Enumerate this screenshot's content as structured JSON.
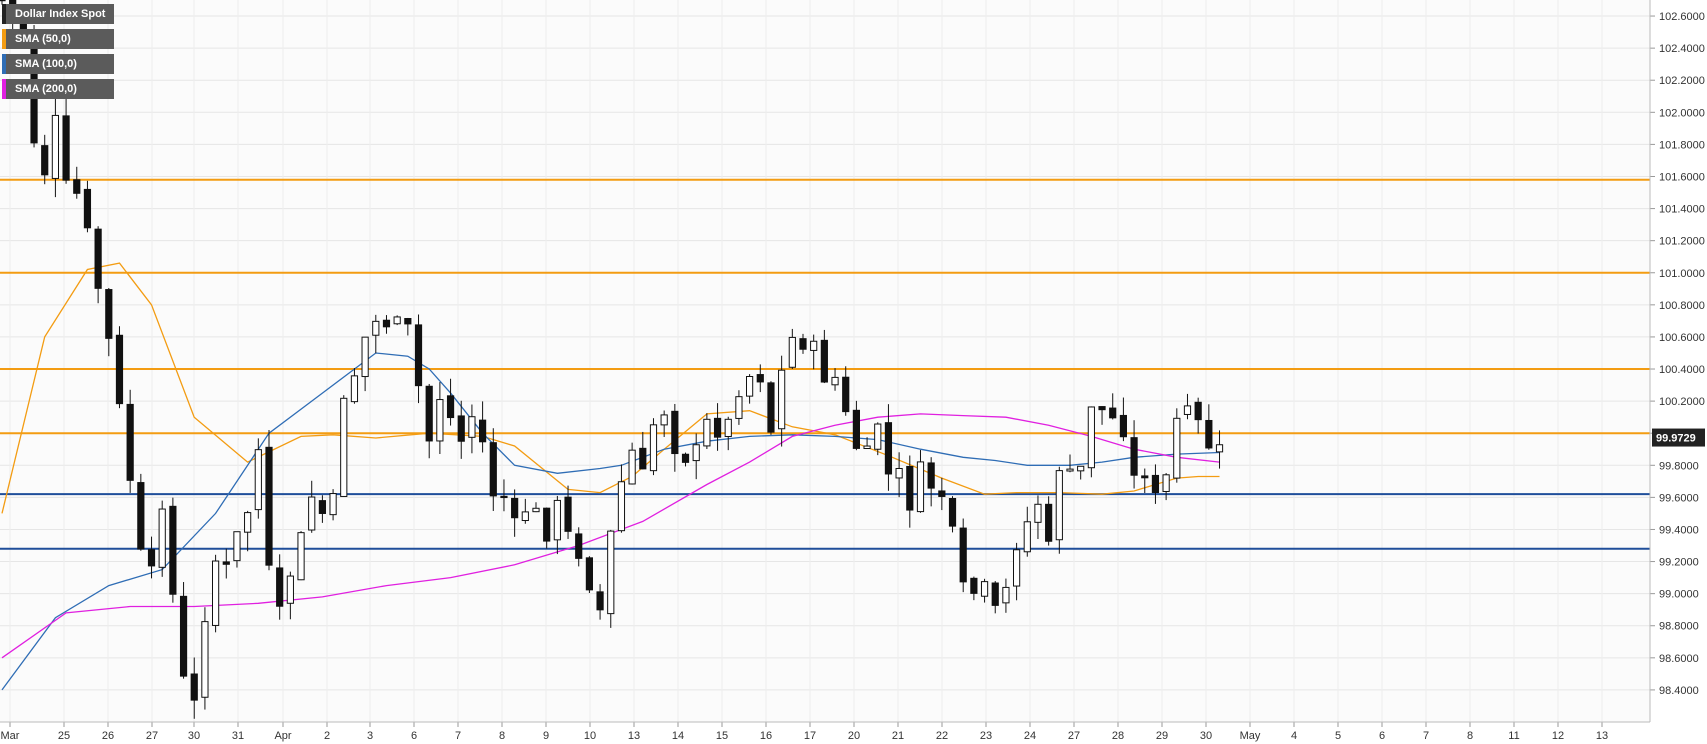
{
  "chart_data": {
    "type": "candlestick",
    "title": "",
    "instrument": "Dollar Index Spot",
    "timeframe": "4-hour",
    "ylim": [
      98.2,
      102.7
    ],
    "y_ticks": [
      "102.6000",
      "102.4000",
      "102.2000",
      "102.0000",
      "101.8000",
      "101.6000",
      "101.4000",
      "101.2000",
      "101.0000",
      "100.8000",
      "100.6000",
      "100.4000",
      "100.2000",
      "100.0000",
      "99.8000",
      "99.6000",
      "99.4000",
      "99.2000",
      "99.0000",
      "98.8000",
      "98.6000",
      "98.4000"
    ],
    "x_ticks": [
      "Mar",
      "25",
      "26",
      "27",
      "30",
      "31",
      "Apr",
      "2",
      "3",
      "6",
      "7",
      "8",
      "9",
      "10",
      "13",
      "14",
      "15",
      "16",
      "17",
      "20",
      "21",
      "22",
      "23",
      "24",
      "27",
      "28",
      "29",
      "30",
      "May",
      "4",
      "5",
      "6",
      "7",
      "8",
      "11",
      "12",
      "13"
    ],
    "last_price": "99.9729",
    "grid": true,
    "legend": [
      {
        "label": "Dollar Index Spot",
        "color": "#222222"
      },
      {
        "label": "SMA (50,0)",
        "color": "#f39c12"
      },
      {
        "label": "SMA (100,0)",
        "color": "#2f6db5"
      },
      {
        "label": "SMA (200,0)",
        "color": "#e020e0"
      }
    ],
    "horizontal_levels": [
      {
        "value": 101.58,
        "color": "#f39c12"
      },
      {
        "value": 101.0,
        "color": "#f39c12"
      },
      {
        "value": 100.4,
        "color": "#f39c12"
      },
      {
        "value": 100.0,
        "color": "#f39c12"
      },
      {
        "value": 99.62,
        "color": "#1f4e9a"
      },
      {
        "value": 99.28,
        "color": "#1f4e9a"
      }
    ],
    "close_path": [
      [
        0,
        102.7
      ],
      [
        2,
        102.5
      ],
      [
        3,
        101.8
      ],
      [
        4,
        101.6
      ],
      [
        5,
        102.0
      ],
      [
        6,
        101.6
      ],
      [
        7,
        101.5
      ],
      [
        8,
        101.3
      ],
      [
        9,
        100.9
      ],
      [
        10,
        100.6
      ],
      [
        11,
        100.2
      ],
      [
        12,
        99.7
      ],
      [
        13,
        99.3
      ],
      [
        14,
        99.2
      ],
      [
        15,
        99.5
      ],
      [
        16,
        99.0
      ],
      [
        17,
        98.5
      ],
      [
        18,
        98.35
      ],
      [
        19,
        98.8
      ],
      [
        20,
        99.2
      ],
      [
        21,
        99.2
      ],
      [
        22,
        99.4
      ],
      [
        23,
        99.5
      ],
      [
        24,
        99.9
      ],
      [
        25,
        99.2
      ],
      [
        26,
        98.95
      ],
      [
        27,
        99.1
      ],
      [
        28,
        99.4
      ],
      [
        29,
        99.6
      ],
      [
        30,
        99.5
      ],
      [
        31,
        99.65
      ],
      [
        32,
        100.2
      ],
      [
        33,
        100.35
      ],
      [
        34,
        100.6
      ],
      [
        35,
        100.7
      ],
      [
        36,
        100.65
      ],
      [
        37,
        100.75
      ],
      [
        38,
        100.7
      ],
      [
        39,
        100.3
      ],
      [
        40,
        99.95
      ],
      [
        41,
        100.2
      ],
      [
        42,
        100.1
      ],
      [
        43,
        99.95
      ],
      [
        44,
        100.1
      ],
      [
        45,
        99.95
      ],
      [
        46,
        99.6
      ],
      [
        47,
        99.6
      ],
      [
        48,
        99.5
      ],
      [
        49,
        99.5
      ],
      [
        50,
        99.55
      ],
      [
        51,
        99.3
      ],
      [
        52,
        99.6
      ],
      [
        53,
        99.4
      ],
      [
        54,
        99.2
      ],
      [
        55,
        99.0
      ],
      [
        56,
        98.9
      ],
      [
        57,
        99.4
      ],
      [
        58,
        99.7
      ],
      [
        59,
        99.9
      ],
      [
        60,
        99.8
      ],
      [
        61,
        100.05
      ],
      [
        62,
        100.1
      ],
      [
        63,
        99.85
      ],
      [
        64,
        99.8
      ],
      [
        65,
        99.95
      ],
      [
        66,
        100.1
      ],
      [
        67,
        99.95
      ],
      [
        68,
        100.1
      ],
      [
        69,
        100.2
      ],
      [
        70,
        100.35
      ],
      [
        71,
        100.3
      ],
      [
        72,
        100.0
      ],
      [
        73,
        100.4
      ],
      [
        74,
        100.6
      ],
      [
        75,
        100.5
      ],
      [
        76,
        100.6
      ],
      [
        77,
        100.3
      ],
      [
        78,
        100.35
      ],
      [
        79,
        100.15
      ],
      [
        80,
        99.9
      ],
      [
        81,
        99.95
      ],
      [
        82,
        100.05
      ],
      [
        83,
        99.75
      ],
      [
        84,
        99.8
      ],
      [
        85,
        99.5
      ],
      [
        86,
        99.85
      ],
      [
        87,
        99.65
      ],
      [
        88,
        99.6
      ],
      [
        89,
        99.45
      ],
      [
        90,
        99.1
      ],
      [
        91,
        99.0
      ],
      [
        92,
        99.1
      ],
      [
        93,
        98.95
      ],
      [
        94,
        99.05
      ],
      [
        95,
        99.25
      ],
      [
        96,
        99.45
      ],
      [
        97,
        99.55
      ],
      [
        98,
        99.35
      ],
      [
        99,
        99.75
      ],
      [
        100,
        99.8
      ],
      [
        101,
        99.8
      ],
      [
        102,
        100.15
      ],
      [
        103,
        100.15
      ],
      [
        104,
        100.1
      ],
      [
        105,
        99.95
      ],
      [
        106,
        99.75
      ],
      [
        107,
        99.7
      ],
      [
        108,
        99.65
      ],
      [
        109,
        99.75
      ],
      [
        110,
        100.1
      ],
      [
        111,
        100.2
      ],
      [
        112,
        100.1
      ],
      [
        113,
        99.9
      ],
      [
        114,
        99.95
      ]
    ],
    "series": [
      {
        "name": "SMA (50,0)",
        "x": [
          0,
          4,
          8,
          11,
          14,
          18,
          23,
          28,
          31,
          35,
          40,
          45,
          48,
          53,
          56,
          59,
          62,
          66,
          70,
          74,
          78,
          83,
          88,
          92,
          95,
          99,
          103,
          106,
          108,
          110,
          112,
          114
        ],
        "values": [
          99.5,
          100.6,
          101.02,
          101.06,
          100.8,
          100.1,
          99.82,
          99.98,
          99.99,
          99.97,
          100.0,
          99.98,
          99.92,
          99.65,
          99.63,
          99.73,
          99.9,
          100.12,
          100.14,
          100.04,
          99.99,
          99.86,
          99.72,
          99.62,
          99.63,
          99.63,
          99.62,
          99.64,
          99.68,
          99.72,
          99.73,
          99.73
        ]
      },
      {
        "name": "SMA (100,0)",
        "x": [
          0,
          5,
          10,
          15,
          20,
          25,
          30,
          35,
          38,
          40,
          42,
          45,
          48,
          52,
          56,
          58,
          62,
          66,
          70,
          74,
          78,
          82,
          86,
          90,
          93,
          96,
          100,
          103,
          106,
          110,
          114
        ],
        "values": [
          98.4,
          98.85,
          99.05,
          99.15,
          99.5,
          100.0,
          100.25,
          100.5,
          100.48,
          100.4,
          100.25,
          100.0,
          99.8,
          99.75,
          99.78,
          99.8,
          99.9,
          99.95,
          99.98,
          99.99,
          99.98,
          99.96,
          99.9,
          99.85,
          99.83,
          99.8,
          99.8,
          99.82,
          99.85,
          99.87,
          99.88
        ]
      },
      {
        "name": "SMA (200,0)",
        "x": [
          0,
          6,
          12,
          18,
          24,
          30,
          36,
          42,
          48,
          54,
          60,
          66,
          70,
          74,
          78,
          82,
          86,
          90,
          94,
          98,
          102,
          106,
          110,
          114
        ],
        "values": [
          98.6,
          98.88,
          98.92,
          98.92,
          98.94,
          98.98,
          99.05,
          99.1,
          99.18,
          99.3,
          99.45,
          99.68,
          99.82,
          99.98,
          100.05,
          100.1,
          100.12,
          100.11,
          100.1,
          100.05,
          99.98,
          99.9,
          99.85,
          99.82
        ]
      }
    ]
  }
}
